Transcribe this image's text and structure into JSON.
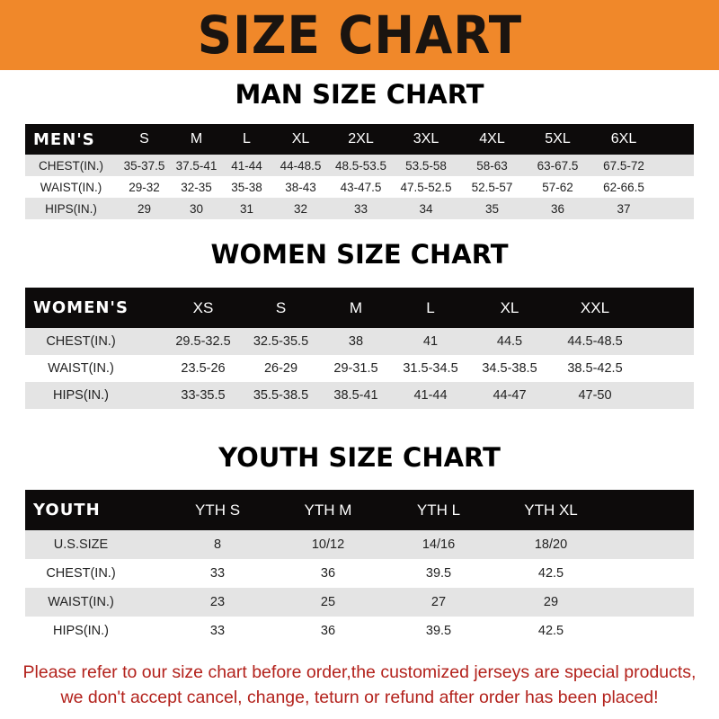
{
  "banner": {
    "title": "SIZE CHART",
    "color": "#f0882a"
  },
  "men": {
    "title": "MAN SIZE CHART",
    "header": [
      "MEN'S",
      "S",
      "M",
      "L",
      "XL",
      "2XL",
      "3XL",
      "4XL",
      "5XL",
      "6XL"
    ],
    "rows": [
      [
        "CHEST(IN.)",
        "35-37.5",
        "37.5-41",
        "41-44",
        "44-48.5",
        "48.5-53.5",
        "53.5-58",
        "58-63",
        "63-67.5",
        "67.5-72"
      ],
      [
        "WAIST(IN.)",
        "29-32",
        "32-35",
        "35-38",
        "38-43",
        "43-47.5",
        "47.5-52.5",
        "52.5-57",
        "57-62",
        "62-66.5"
      ],
      [
        "HIPS(IN.)",
        "29",
        "30",
        "31",
        "32",
        "33",
        "34",
        "35",
        "36",
        "37"
      ]
    ]
  },
  "women": {
    "title": "WOMEN SIZE CHART",
    "header": [
      "WOMEN'S",
      "XS",
      "S",
      "M",
      "L",
      "XL",
      "XXL"
    ],
    "rows": [
      [
        "CHEST(IN.)",
        "29.5-32.5",
        "32.5-35.5",
        "38",
        "41",
        "44.5",
        "44.5-48.5"
      ],
      [
        "WAIST(IN.)",
        "23.5-26",
        "26-29",
        "29-31.5",
        "31.5-34.5",
        "34.5-38.5",
        "38.5-42.5"
      ],
      [
        "HIPS(IN.)",
        "33-35.5",
        "35.5-38.5",
        "38.5-41",
        "41-44",
        "44-47",
        "47-50"
      ]
    ]
  },
  "youth": {
    "title": "YOUTH SIZE CHART",
    "header": [
      "YOUTH",
      "YTH S",
      "YTH M",
      "YTH L",
      "YTH XL"
    ],
    "rows": [
      [
        "U.S.SIZE",
        "8",
        "10/12",
        "14/16",
        "18/20"
      ],
      [
        "CHEST(IN.)",
        "33",
        "36",
        "39.5",
        "42.5"
      ],
      [
        "WAIST(IN.)",
        "23",
        "25",
        "27",
        "29"
      ],
      [
        "HIPS(IN.)",
        "33",
        "36",
        "39.5",
        "42.5"
      ]
    ]
  },
  "footer": {
    "line1": "Please refer to our size chart before order,the customized jerseys are special products,",
    "line2": "we don't accept cancel, change, teturn or refund after order has been placed!",
    "color": "#b3221c"
  }
}
